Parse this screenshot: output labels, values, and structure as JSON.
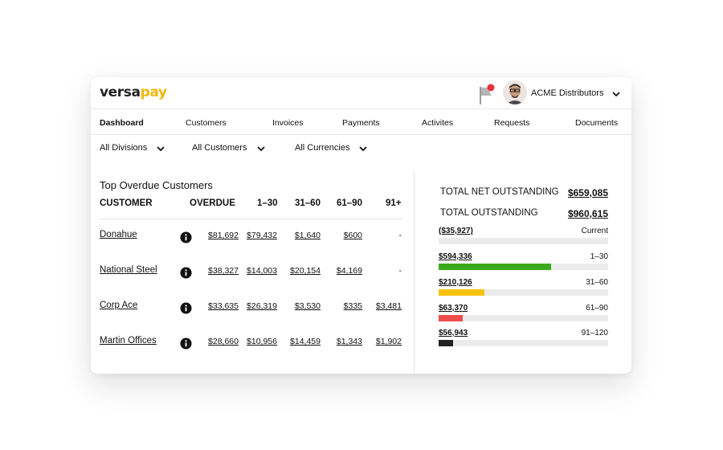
{
  "brand": {
    "logo_main": "versa",
    "logo_accent": "pay",
    "accent_color": "#f2b705"
  },
  "header": {
    "company": "ACME Distributors",
    "flag_icon": "flag-icon",
    "notification_color": "#e8333a"
  },
  "nav": [
    "Dashboard",
    "Customers",
    "Invoices",
    "Payments",
    "Activites",
    "Requests",
    "Documents"
  ],
  "filters": [
    "All Divisions",
    "All Customers",
    "All Currencies"
  ],
  "overdue": {
    "title": "Top Overdue Customers",
    "headers": [
      "CUSTOMER",
      "OVERDUE",
      "1–30",
      "31–60",
      "61–90",
      "91+"
    ],
    "rows": [
      {
        "name": "Donahue",
        "values": [
          "$81,692",
          "$79,432",
          "$1,640",
          "$600",
          "-"
        ]
      },
      {
        "name": "National Steel",
        "values": [
          "$38,327",
          "$14,003",
          "$20,154",
          "$4,169",
          "-"
        ]
      },
      {
        "name": "Corp Ace",
        "values": [
          "$33,635",
          "$26,319",
          "$3,530",
          "$335",
          "$3,481"
        ]
      },
      {
        "name": "Martin Offices",
        "values": [
          "$28,660",
          "$10,956",
          "$14,459",
          "$1,343",
          "$1,902"
        ]
      }
    ]
  },
  "totals": {
    "net_label": "TOTAL NET OUTSTANDING",
    "net_value": "$659,085",
    "total_label": "TOTAL OUTSTANDING",
    "total_value": "$960,615"
  },
  "buckets": [
    {
      "amount": "($35,927)",
      "label": "Current",
      "fill": 0.0,
      "color": "#ebebeb"
    },
    {
      "amount": "$594,336",
      "label": "1–30",
      "fill": 0.665,
      "color": "#3aaa1c"
    },
    {
      "amount": "$210,126",
      "label": "31–60",
      "fill": 0.27,
      "color": "#f5c30f"
    },
    {
      "amount": "$63,370",
      "label": "61–90",
      "fill": 0.14,
      "color": "#ef4c4c"
    },
    {
      "amount": "$56,943",
      "label": "91–120",
      "fill": 0.085,
      "color": "#222222"
    }
  ]
}
